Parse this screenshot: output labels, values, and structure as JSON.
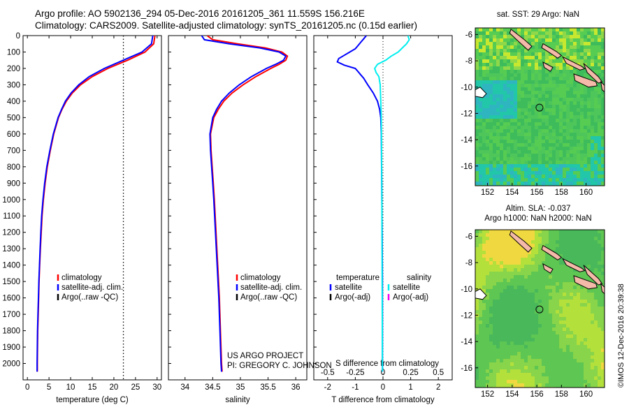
{
  "header": {
    "line1": "Argo profile: AO 5902136_294 05-Dec-2016 20161205_361 11.559S 156.216E",
    "line2": "Climatology: CARS2009. Satellite-adjusted climatology: synTS_20161205.nc (0.15d earlier)"
  },
  "credit": {
    "line1": "US ARGO PROJECT",
    "line2": "PI: GREGORY C. JOHNSON"
  },
  "watermark": "©IMOS 12-Dec-2016 20:39:38",
  "chart_data": [
    {
      "id": "temperature",
      "type": "line",
      "xlabel": "temperature (deg C)",
      "ylabel": "",
      "xlim": [
        -1,
        31
      ],
      "ylim": [
        2100,
        0
      ],
      "xticks": [
        0,
        5,
        10,
        15,
        20,
        25,
        30
      ],
      "yticks": [
        0,
        100,
        200,
        300,
        400,
        500,
        600,
        700,
        800,
        900,
        1000,
        1100,
        1200,
        1300,
        1400,
        1500,
        1600,
        1700,
        1800,
        1900,
        2000
      ],
      "reference_line": {
        "x": 22.2,
        "style": "dotted"
      },
      "legend": [
        "climatology",
        "satellite-adj. clim.",
        "Argo(..raw -QC)"
      ],
      "series": [
        {
          "name": "climatology",
          "color": "#ff0000",
          "y": [
            0,
            50,
            100,
            150,
            200,
            250,
            300,
            350,
            400,
            450,
            500,
            600,
            700,
            800,
            900,
            1000,
            1100,
            1200,
            1300,
            1400,
            1500,
            1600,
            1700,
            1800,
            1900,
            2000,
            2050
          ],
          "x": [
            29.5,
            29.2,
            27.2,
            23.2,
            18.6,
            15.0,
            12.3,
            10.4,
            9.0,
            8.0,
            7.2,
            6.1,
            5.3,
            4.6,
            4.1,
            3.7,
            3.4,
            3.2,
            3.0,
            2.85,
            2.7,
            2.6,
            2.5,
            2.4,
            2.35,
            2.3,
            2.3
          ]
        },
        {
          "name": "satellite-adj. clim.",
          "color": "#0000ff",
          "y": [
            0,
            50,
            100,
            150,
            200,
            250,
            300,
            350,
            400,
            450,
            500,
            600,
            700,
            800,
            900,
            1000,
            1100,
            1200,
            1300,
            1400,
            1500,
            1600,
            1700,
            1800,
            1900,
            2000,
            2050
          ],
          "x": [
            29.0,
            28.7,
            26.5,
            22.2,
            17.8,
            14.3,
            11.9,
            10.1,
            8.8,
            7.9,
            7.1,
            6.0,
            5.2,
            4.5,
            4.0,
            3.6,
            3.3,
            3.1,
            2.95,
            2.8,
            2.65,
            2.55,
            2.45,
            2.35,
            2.3,
            2.25,
            2.25
          ]
        }
      ]
    },
    {
      "id": "salinity",
      "type": "line",
      "xlabel": "salinity",
      "xlim": [
        33.7,
        36.2
      ],
      "ylim": [
        2100,
        0
      ],
      "xticks": [
        34,
        34.5,
        35,
        35.5,
        36
      ],
      "legend": [
        "climatology",
        "satellite-adj. clim.",
        "Argo(..raw -QC)"
      ],
      "series": [
        {
          "name": "climatology",
          "color": "#ff0000",
          "y": [
            0,
            25,
            50,
            75,
            100,
            125,
            150,
            175,
            200,
            250,
            300,
            350,
            400,
            450,
            500,
            600,
            700,
            800,
            900,
            1000,
            1200,
            1400,
            1600,
            1800,
            2000,
            2050
          ],
          "x": [
            34.4,
            34.5,
            34.95,
            35.45,
            35.75,
            35.85,
            35.82,
            35.7,
            35.55,
            35.28,
            35.05,
            34.85,
            34.7,
            34.6,
            34.52,
            34.46,
            34.47,
            34.49,
            34.51,
            34.53,
            34.56,
            34.59,
            34.62,
            34.64,
            34.66,
            34.67
          ]
        },
        {
          "name": "satellite-adj. clim.",
          "color": "#0000ff",
          "y": [
            0,
            25,
            50,
            75,
            100,
            125,
            150,
            175,
            200,
            250,
            300,
            350,
            400,
            450,
            500,
            600,
            700,
            800,
            900,
            1000,
            1200,
            1400,
            1600,
            1800,
            2000,
            2050
          ],
          "x": [
            34.3,
            34.35,
            34.8,
            35.35,
            35.7,
            35.82,
            35.78,
            35.64,
            35.47,
            35.2,
            34.98,
            34.8,
            34.66,
            34.57,
            34.5,
            34.45,
            34.46,
            34.48,
            34.5,
            34.52,
            34.55,
            34.58,
            34.61,
            34.63,
            34.65,
            34.66
          ]
        }
      ]
    },
    {
      "id": "difference",
      "type": "line",
      "xlabel": "T difference from climatology",
      "x2label": "S difference from climatology",
      "xlim": [
        -2.5,
        2.5
      ],
      "ylim": [
        2100,
        0
      ],
      "xticks": [
        -2,
        -1,
        0,
        1,
        2
      ],
      "x2ticks": [
        -0.5,
        -0.25,
        0,
        0.25,
        0.5
      ],
      "legend": {
        "temperature": "temperature",
        "salinity": "salinity",
        "t_sat": "satellite",
        "s_sat": "satellite",
        "t_argo": "Argo(-adj)",
        "s_argo": "Argo(-adj)"
      },
      "series": [
        {
          "name": "satellite",
          "color": "#0000ff",
          "y": [
            0,
            20,
            40,
            60,
            80,
            100,
            120,
            140,
            160,
            180,
            200,
            220,
            240,
            260,
            300,
            350,
            400,
            450,
            500,
            600,
            800,
            1000,
            1200,
            1500,
            2000,
            2050
          ],
          "x": [
            -0.6,
            -0.7,
            -0.8,
            -0.9,
            -1.0,
            -1.2,
            -1.4,
            -1.6,
            -1.65,
            -1.4,
            -1.0,
            -0.9,
            -0.8,
            -0.7,
            -0.55,
            -0.35,
            -0.2,
            -0.12,
            -0.08,
            -0.06,
            -0.05,
            -0.04,
            -0.03,
            -0.02,
            -0.02,
            -0.02
          ]
        },
        {
          "name": "satellite",
          "color": "#00eeee",
          "y": [
            0,
            25,
            50,
            75,
            100,
            125,
            150,
            175,
            200,
            225,
            250,
            300,
            400,
            500,
            700,
            1000,
            1500,
            2000,
            2050
          ],
          "x": [
            0.9,
            0.95,
            0.85,
            0.7,
            0.55,
            0.3,
            0.1,
            -0.2,
            -0.3,
            -0.25,
            -0.15,
            -0.1,
            -0.08,
            -0.06,
            -0.05,
            -0.04,
            -0.03,
            -0.02,
            -0.02
          ]
        }
      ]
    }
  ],
  "maps": {
    "sst": {
      "title": "sat. SST: 29 Argo: NaN",
      "xticks": [
        "152",
        "154",
        "156",
        "158",
        "160"
      ],
      "yticks": [
        "-6",
        "-8",
        "-10",
        "-12",
        "-14",
        "-16"
      ],
      "xlim": [
        151,
        161.5
      ],
      "ylim": [
        -17.5,
        -5.5
      ],
      "float": {
        "lon": 156.216,
        "lat": -11.559
      }
    },
    "sla": {
      "title1": "Altim. SLA: -0.037",
      "title2": "Argo h1000: NaN h2000: NaN",
      "xticks": [
        "152",
        "154",
        "156",
        "158",
        "160"
      ],
      "yticks": [
        "-6",
        "-8",
        "-10",
        "-12",
        "-14",
        "-16"
      ],
      "xlim": [
        151,
        161.5
      ],
      "ylim": [
        -17.5,
        -5.5
      ],
      "float": {
        "lon": 156.216,
        "lat": -11.559
      }
    }
  }
}
